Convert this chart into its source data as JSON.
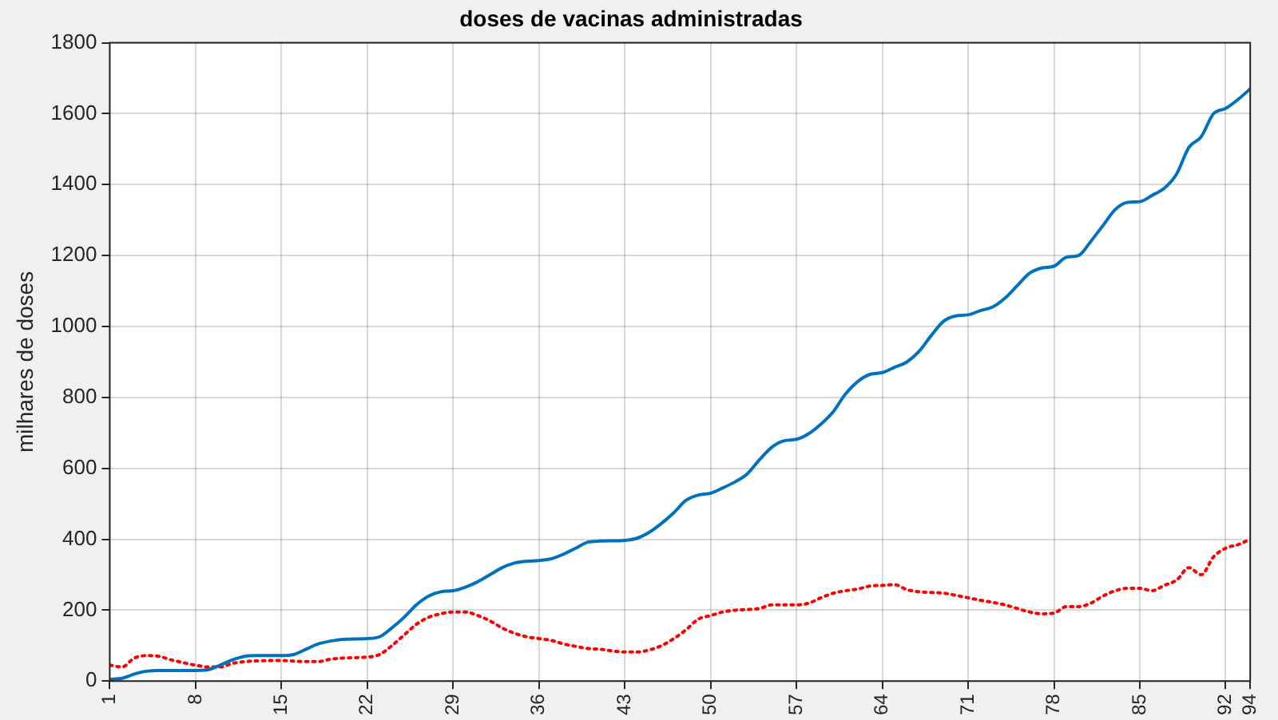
{
  "chart_data": {
    "type": "line",
    "title": "doses de vacinas administradas",
    "ylabel": "milhares de doses",
    "xlim": [
      1,
      94
    ],
    "xticks": [
      1,
      8,
      15,
      22,
      29,
      36,
      43,
      50,
      57,
      64,
      71,
      78,
      85,
      92,
      94
    ],
    "ylim": [
      0,
      1800
    ],
    "yticks": [
      0,
      200,
      400,
      600,
      800,
      1000,
      1200,
      1400,
      1600,
      1800
    ],
    "grid": true,
    "legend": false,
    "marker": "none",
    "series": [
      {
        "color": "#0072bd",
        "line_style": "solid",
        "x": [
          1,
          2,
          3,
          4,
          5,
          6,
          8,
          9,
          10,
          11,
          12,
          13,
          15,
          16,
          17,
          18,
          19,
          20,
          22,
          23,
          24,
          25,
          26,
          27,
          28,
          29,
          30,
          31,
          32,
          33,
          34,
          35,
          36,
          37,
          38,
          39,
          40,
          41,
          43,
          44,
          45,
          46,
          47,
          48,
          49,
          50,
          51,
          52,
          53,
          54,
          55,
          56,
          57,
          58,
          59,
          60,
          61,
          62,
          63,
          64,
          65,
          66,
          67,
          68,
          69,
          70,
          71,
          72,
          73,
          74,
          75,
          76,
          77,
          78,
          79,
          80,
          81,
          82,
          83,
          84,
          85,
          86,
          87,
          88,
          89,
          90,
          91,
          92,
          93,
          94
        ],
        "values": [
          5,
          8,
          20,
          28,
          30,
          30,
          30,
          32,
          45,
          60,
          70,
          72,
          72,
          75,
          90,
          105,
          113,
          118,
          120,
          125,
          150,
          180,
          215,
          240,
          252,
          255,
          265,
          280,
          300,
          320,
          333,
          338,
          340,
          345,
          358,
          375,
          392,
          395,
          397,
          403,
          420,
          445,
          475,
          510,
          525,
          530,
          545,
          562,
          585,
          625,
          660,
          678,
          682,
          698,
          725,
          760,
          810,
          845,
          865,
          870,
          885,
          900,
          930,
          975,
          1015,
          1030,
          1033,
          1045,
          1055,
          1080,
          1115,
          1150,
          1165,
          1170,
          1195,
          1200,
          1240,
          1285,
          1330,
          1350,
          1352,
          1370,
          1390,
          1430,
          1505,
          1535,
          1600,
          1615,
          1640,
          1670
        ]
      },
      {
        "color": "#ff0000",
        "line_style": "dotted",
        "x": [
          1,
          2,
          3,
          4,
          5,
          6,
          7,
          8,
          9,
          10,
          11,
          12,
          13,
          15,
          17,
          18,
          19,
          20,
          22,
          23,
          24,
          25,
          26,
          27,
          28,
          29,
          30,
          31,
          32,
          33,
          34,
          35,
          36,
          37,
          38,
          39,
          40,
          41,
          42,
          43,
          44,
          45,
          46,
          47,
          48,
          49,
          50,
          51,
          52,
          53,
          54,
          55,
          56,
          57,
          58,
          59,
          60,
          61,
          62,
          63,
          64,
          65,
          66,
          67,
          68,
          69,
          70,
          71,
          72,
          73,
          74,
          75,
          76,
          77,
          78,
          79,
          80,
          81,
          82,
          83,
          84,
          85,
          86,
          87,
          88,
          89,
          90,
          91,
          92,
          93,
          94
        ],
        "values": [
          45,
          40,
          65,
          72,
          70,
          60,
          52,
          45,
          40,
          40,
          50,
          55,
          57,
          58,
          55,
          55,
          62,
          65,
          68,
          75,
          100,
          130,
          160,
          180,
          190,
          195,
          195,
          185,
          170,
          150,
          135,
          125,
          120,
          115,
          105,
          98,
          92,
          90,
          85,
          82,
          82,
          88,
          100,
          120,
          145,
          175,
          185,
          195,
          200,
          202,
          205,
          215,
          215,
          215,
          220,
          235,
          248,
          255,
          260,
          268,
          270,
          272,
          258,
          252,
          250,
          248,
          242,
          235,
          228,
          222,
          215,
          205,
          195,
          190,
          192,
          210,
          210,
          220,
          240,
          255,
          262,
          262,
          255,
          270,
          285,
          320,
          300,
          350,
          375,
          385,
          400
        ]
      }
    ]
  }
}
